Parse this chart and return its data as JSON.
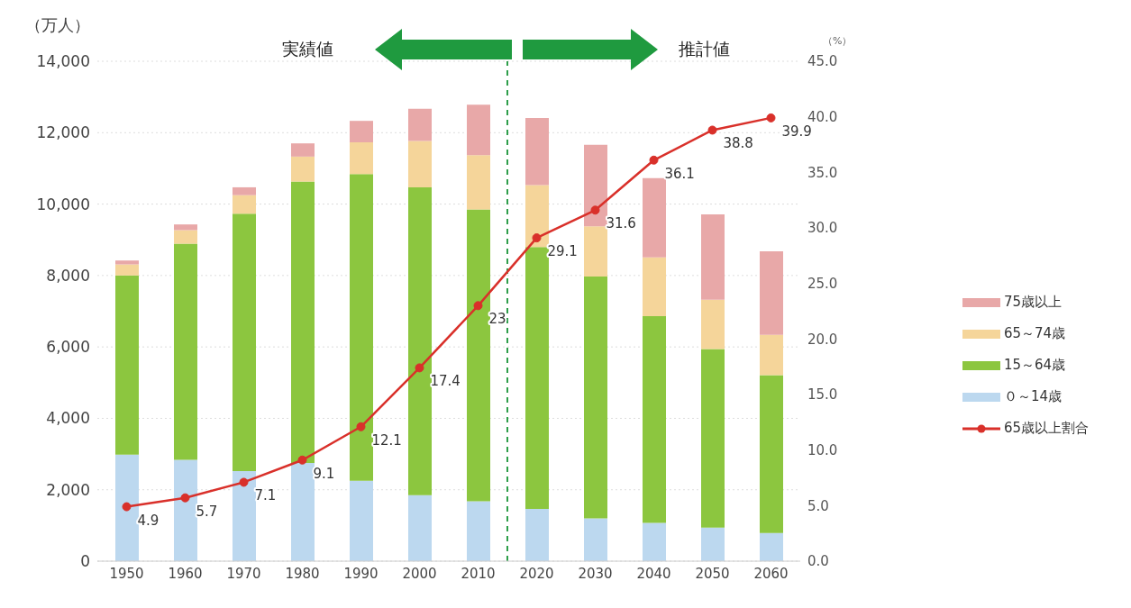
{
  "chart_data": {
    "type": "bar",
    "stacked": true,
    "x": [
      1950,
      1960,
      1970,
      1980,
      1990,
      2000,
      2010,
      2020,
      2030,
      2040,
      2050,
      2060
    ],
    "xlim": [
      1945,
      2065
    ],
    "xticks": [
      1950,
      1960,
      1970,
      1980,
      1990,
      2000,
      2010,
      2020,
      2030,
      2040,
      2050,
      2060
    ],
    "ylabel": "（万人）",
    "y2label": "（%）",
    "ylim": [
      0,
      14000
    ],
    "yticks": [
      0,
      {
        "value": 2000,
        "label": "2,000"
      },
      {
        "value": 4000,
        "label": "4,000"
      },
      {
        "value": 6000,
        "label": "6,000"
      },
      {
        "value": 8000,
        "label": "8,000"
      },
      {
        "value": 10000,
        "label": "10,000"
      },
      {
        "value": 12000,
        "label": "12,000"
      },
      {
        "value": 14000,
        "label": "14,000"
      }
    ],
    "y2lim": [
      0,
      45
    ],
    "y2ticks": [
      {
        "value": 0,
        "label": "0.0"
      },
      {
        "value": 5,
        "label": "5.0"
      },
      {
        "value": 10,
        "label": "10.0"
      },
      {
        "value": 15,
        "label": "15.0"
      },
      {
        "value": 20,
        "label": "20.0"
      },
      {
        "value": 25,
        "label": "25.0"
      },
      {
        "value": 30,
        "label": "30.0"
      },
      {
        "value": 35,
        "label": "35.0"
      },
      {
        "value": 40,
        "label": "40.0"
      },
      {
        "value": 45,
        "label": "45.0"
      }
    ],
    "series": [
      {
        "name": "０～14歳",
        "color": "#bcd8ef",
        "values": [
          2980,
          2840,
          2520,
          2750,
          2250,
          1850,
          1680,
          1460,
          1200,
          1070,
          940,
          790
        ]
      },
      {
        "name": "15～64歳",
        "color": "#8cc63f",
        "values": [
          5020,
          6050,
          7210,
          7880,
          8590,
          8620,
          8170,
          7340,
          6770,
          5790,
          5000,
          4420
        ]
      },
      {
        "name": "65～74歳",
        "color": "#f5d59a",
        "values": [
          310,
          380,
          520,
          700,
          890,
          1300,
          1520,
          1730,
          1410,
          1650,
          1380,
          1130
        ]
      },
      {
        "name": "75歳以上",
        "color": "#e8a8a8",
        "values": [
          110,
          160,
          220,
          370,
          600,
          900,
          1410,
          1880,
          2280,
          2220,
          2390,
          2340
        ]
      },
      {
        "name": "65歳以上割合",
        "type": "line",
        "axis": "y2",
        "color": "#d9302a",
        "marker": "circle",
        "values": [
          4.9,
          5.7,
          7.1,
          9.1,
          12.1,
          17.4,
          23,
          29.1,
          31.6,
          36.1,
          38.8,
          39.9
        ],
        "value_labels": [
          "4.9",
          "5.7",
          "7.1",
          "9.1",
          "12.1",
          "17.4",
          "23",
          "29.1",
          "31.6",
          "36.1",
          "38.8",
          "39.9"
        ]
      }
    ],
    "ref_lines": [
      {
        "axis": "x",
        "value": 2015,
        "color": "#2e9e4a",
        "line_style": "dashed"
      }
    ],
    "annotations": [
      "実績値",
      "推計値"
    ],
    "grid": "y",
    "legend": "right"
  }
}
